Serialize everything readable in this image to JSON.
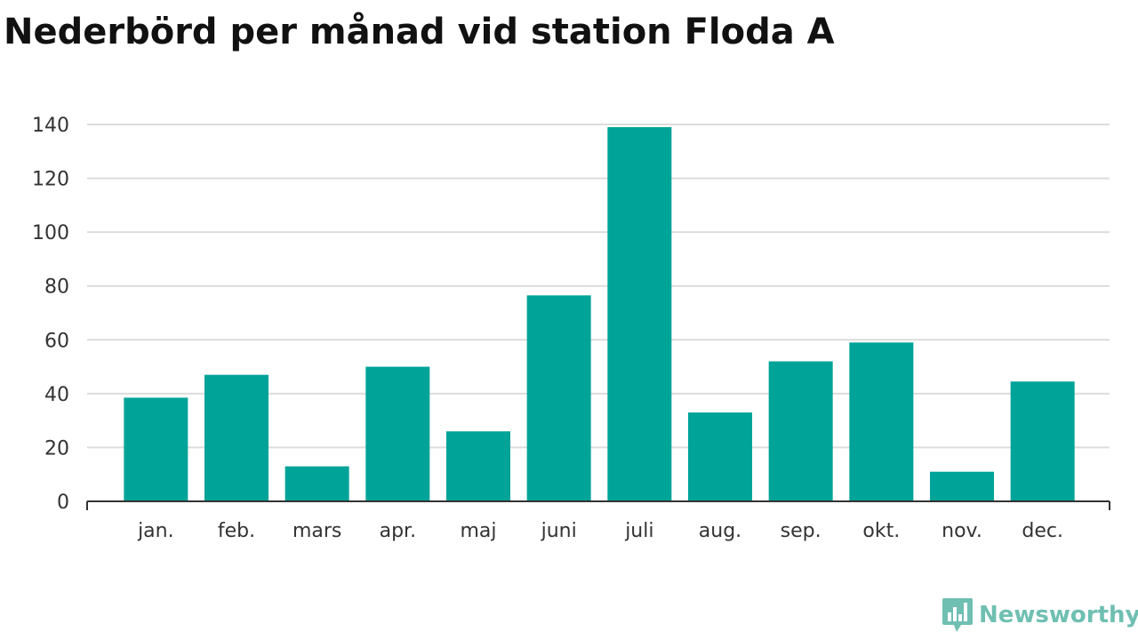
{
  "title": "Nederbörd per månad vid station Floda A",
  "brand": {
    "name": "Newsworthy",
    "logo_icon": "newsworthy-bar-chart-speech-bubble-icon",
    "color": "#6fbfb2"
  },
  "chart_data": {
    "type": "bar",
    "title": "Nederbörd per månad vid station Floda A",
    "xlabel": "",
    "ylabel": "",
    "categories": [
      "jan.",
      "feb.",
      "mars",
      "apr.",
      "maj",
      "juni",
      "juli",
      "aug.",
      "sep.",
      "okt.",
      "nov.",
      "dec."
    ],
    "values": [
      38.5,
      47,
      13,
      50,
      26,
      76.5,
      139,
      33,
      52,
      59,
      11,
      44.5
    ],
    "ylim": [
      0,
      140
    ],
    "yticks": [
      0,
      20,
      40,
      60,
      80,
      100,
      120,
      140
    ],
    "grid": true,
    "legend": "none",
    "bar_color": "#00a398"
  }
}
